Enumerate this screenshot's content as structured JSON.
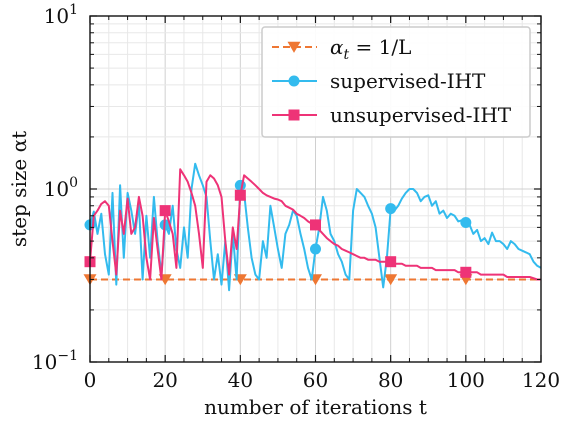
{
  "chart_data": {
    "type": "line",
    "title": "",
    "xlabel": "number of iterations t",
    "ylabel": "step size αt",
    "xlim": [
      0,
      120
    ],
    "ylim": [
      0.1,
      10
    ],
    "yscale": "log",
    "grid": true,
    "legend_position": "top-right",
    "x_ticks": [
      0,
      20,
      40,
      60,
      80,
      100,
      120
    ],
    "x_tick_labels": [
      "0",
      "20",
      "40",
      "60",
      "80",
      "100",
      "120"
    ],
    "y_ticks": [
      0.1,
      1,
      10
    ],
    "y_tick_labels": [
      {
        "base": "10",
        "exp": "−1"
      },
      {
        "base": "10",
        "exp": "0"
      },
      {
        "base": "10",
        "exp": "1"
      }
    ],
    "series": [
      {
        "name": "αt = 1/L",
        "legend_label": {
          "prefix": "α",
          "sub": "t",
          "suffix": " = 1/L"
        },
        "color": "#EE7733",
        "dashed": true,
        "marker": "triangle-down",
        "x": [
          0,
          120
        ],
        "y": [
          0.3,
          0.3
        ],
        "markers_x": [
          0,
          20,
          40,
          60,
          80,
          100
        ],
        "markers_y": [
          0.3,
          0.3,
          0.3,
          0.3,
          0.3,
          0.3
        ]
      },
      {
        "name": "supervised-IHT",
        "color": "#33BBEE",
        "dashed": false,
        "marker": "circle",
        "x": [
          0,
          1,
          2,
          3,
          4,
          5,
          6,
          7,
          8,
          9,
          10,
          11,
          12,
          13,
          14,
          15,
          16,
          17,
          18,
          19,
          20,
          21,
          22,
          23,
          24,
          25,
          26,
          27,
          28,
          29,
          30,
          31,
          32,
          33,
          34,
          35,
          36,
          37,
          38,
          39,
          40,
          41,
          42,
          43,
          44,
          45,
          46,
          47,
          48,
          49,
          50,
          51,
          52,
          53,
          54,
          55,
          56,
          57,
          58,
          59,
          60,
          61,
          62,
          63,
          64,
          65,
          66,
          67,
          68,
          69,
          70,
          71,
          72,
          73,
          74,
          75,
          76,
          77,
          78,
          79,
          80,
          81,
          82,
          83,
          84,
          85,
          86,
          87,
          88,
          89,
          90,
          91,
          92,
          93,
          94,
          95,
          96,
          97,
          98,
          99,
          100,
          101,
          102,
          103,
          104,
          105,
          106,
          107,
          108,
          109,
          110,
          111,
          112,
          113,
          114,
          115,
          116,
          117,
          118,
          119,
          120
        ],
        "y": [
          0.62,
          0.74,
          0.55,
          0.72,
          0.42,
          0.32,
          0.95,
          0.28,
          1.05,
          0.4,
          0.95,
          0.75,
          0.55,
          0.82,
          0.3,
          0.7,
          0.4,
          0.9,
          0.5,
          0.32,
          0.62,
          0.55,
          0.8,
          0.45,
          0.35,
          0.6,
          0.4,
          1.0,
          1.4,
          1.2,
          1.05,
          0.9,
          0.5,
          0.3,
          0.42,
          0.28,
          0.5,
          0.26,
          0.55,
          0.3,
          1.05,
          0.95,
          0.6,
          0.4,
          0.32,
          0.3,
          0.5,
          0.4,
          0.8,
          0.6,
          0.45,
          0.35,
          0.55,
          0.62,
          0.75,
          0.7,
          0.55,
          0.45,
          0.35,
          0.3,
          0.45,
          0.6,
          0.9,
          0.75,
          0.55,
          0.5,
          0.42,
          0.38,
          0.32,
          0.3,
          0.75,
          1.0,
          0.95,
          0.9,
          0.8,
          0.72,
          0.6,
          0.4,
          0.27,
          0.4,
          0.77,
          0.75,
          0.8,
          0.88,
          0.95,
          1.0,
          1.0,
          0.95,
          0.85,
          0.9,
          0.92,
          0.8,
          0.85,
          0.72,
          0.75,
          0.68,
          0.72,
          0.7,
          0.65,
          0.66,
          0.64,
          0.62,
          0.55,
          0.58,
          0.5,
          0.52,
          0.48,
          0.56,
          0.5,
          0.5,
          0.48,
          0.45,
          0.5,
          0.48,
          0.45,
          0.44,
          0.43,
          0.42,
          0.38,
          0.36,
          0.35
        ],
        "markers_x": [
          0,
          20,
          40,
          60,
          80,
          100
        ],
        "markers_y": [
          0.62,
          0.62,
          1.05,
          0.45,
          0.77,
          0.64
        ]
      },
      {
        "name": "unsupervised-IHT",
        "color": "#EE3377",
        "dashed": false,
        "marker": "square",
        "x": [
          0,
          1,
          2,
          3,
          4,
          5,
          6,
          7,
          8,
          9,
          10,
          11,
          12,
          13,
          14,
          15,
          16,
          17,
          18,
          19,
          20,
          21,
          22,
          23,
          24,
          25,
          26,
          27,
          28,
          29,
          30,
          31,
          32,
          33,
          34,
          35,
          36,
          37,
          38,
          39,
          40,
          41,
          42,
          43,
          44,
          45,
          46,
          47,
          48,
          49,
          50,
          51,
          52,
          53,
          54,
          55,
          56,
          57,
          58,
          59,
          60,
          61,
          62,
          63,
          64,
          65,
          66,
          67,
          68,
          69,
          70,
          71,
          72,
          73,
          74,
          75,
          76,
          77,
          78,
          79,
          80,
          81,
          82,
          83,
          84,
          85,
          86,
          87,
          88,
          89,
          90,
          91,
          92,
          93,
          94,
          95,
          96,
          97,
          98,
          99,
          100,
          101,
          102,
          103,
          104,
          105,
          106,
          107,
          108,
          109,
          110,
          111,
          112,
          113,
          114,
          115,
          116,
          117,
          118,
          119,
          120
        ],
        "y": [
          0.38,
          0.7,
          0.75,
          0.82,
          0.85,
          0.8,
          0.5,
          0.32,
          0.75,
          0.55,
          0.88,
          0.55,
          0.6,
          0.9,
          0.7,
          0.4,
          0.3,
          0.68,
          0.45,
          0.3,
          0.75,
          0.65,
          0.55,
          0.35,
          1.3,
          1.2,
          1.1,
          0.95,
          0.8,
          0.55,
          0.35,
          1.1,
          1.2,
          1.15,
          1.05,
          0.9,
          0.5,
          0.32,
          0.6,
          0.45,
          0.92,
          1.2,
          1.15,
          1.1,
          1.05,
          1.0,
          0.95,
          0.92,
          0.9,
          0.88,
          0.87,
          0.85,
          0.8,
          0.78,
          0.76,
          0.72,
          0.7,
          0.68,
          0.65,
          0.63,
          0.62,
          0.58,
          0.55,
          0.52,
          0.5,
          0.48,
          0.47,
          0.45,
          0.44,
          0.43,
          0.42,
          0.41,
          0.4,
          0.4,
          0.39,
          0.39,
          0.39,
          0.38,
          0.38,
          0.38,
          0.38,
          0.37,
          0.37,
          0.37,
          0.36,
          0.36,
          0.36,
          0.36,
          0.35,
          0.35,
          0.35,
          0.35,
          0.34,
          0.34,
          0.34,
          0.34,
          0.34,
          0.34,
          0.33,
          0.33,
          0.33,
          0.33,
          0.33,
          0.33,
          0.32,
          0.32,
          0.32,
          0.32,
          0.32,
          0.32,
          0.32,
          0.31,
          0.31,
          0.31,
          0.31,
          0.31,
          0.31,
          0.31,
          0.305,
          0.3,
          0.3
        ],
        "markers_x": [
          0,
          20,
          40,
          60,
          80,
          100
        ],
        "markers_y": [
          0.38,
          0.75,
          0.92,
          0.62,
          0.38,
          0.33
        ]
      }
    ]
  }
}
